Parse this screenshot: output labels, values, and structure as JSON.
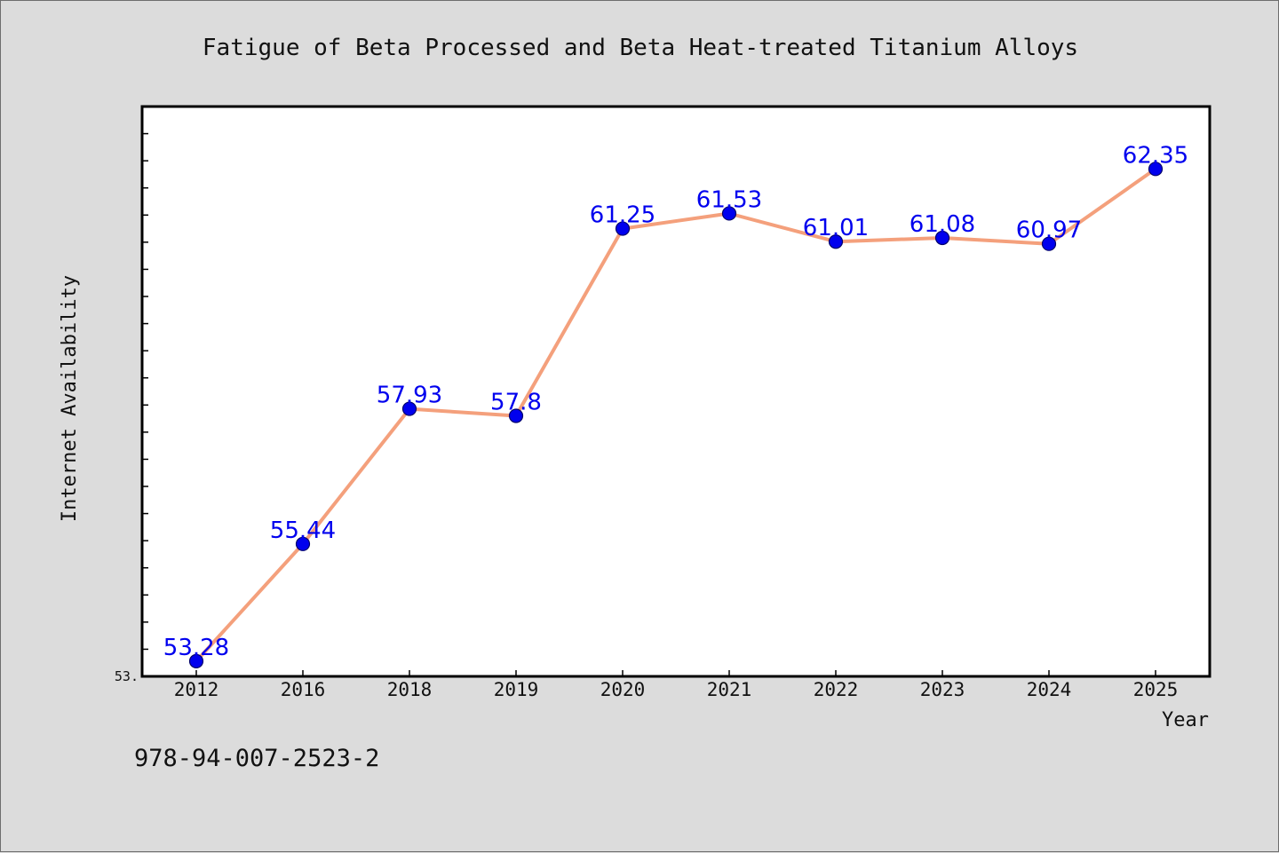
{
  "chart_data": {
    "type": "line",
    "title": "Fatigue of Beta Processed and Beta Heat-treated Titanium Alloys",
    "xlabel": "Year",
    "ylabel": "Internet Availability",
    "categories": [
      "2012",
      "2016",
      "2018",
      "2019",
      "2020",
      "2021",
      "2022",
      "2023",
      "2024",
      "2025"
    ],
    "values": [
      53.28,
      55.44,
      57.93,
      57.8,
      61.25,
      61.53,
      61.01,
      61.08,
      60.97,
      62.35
    ],
    "data_labels": [
      "53.28",
      "55.44",
      "57.93",
      "57.8",
      "61.25",
      "61.53",
      "61.01",
      "61.08",
      "60.97",
      "62.35"
    ],
    "ylim": [
      53.0,
      63.5
    ],
    "ytick_labels": [
      "53."
    ],
    "grid": false,
    "line_color": "#f4a07c",
    "marker_color": "#0000ee"
  },
  "footer_text": "978-94-007-2523-2"
}
